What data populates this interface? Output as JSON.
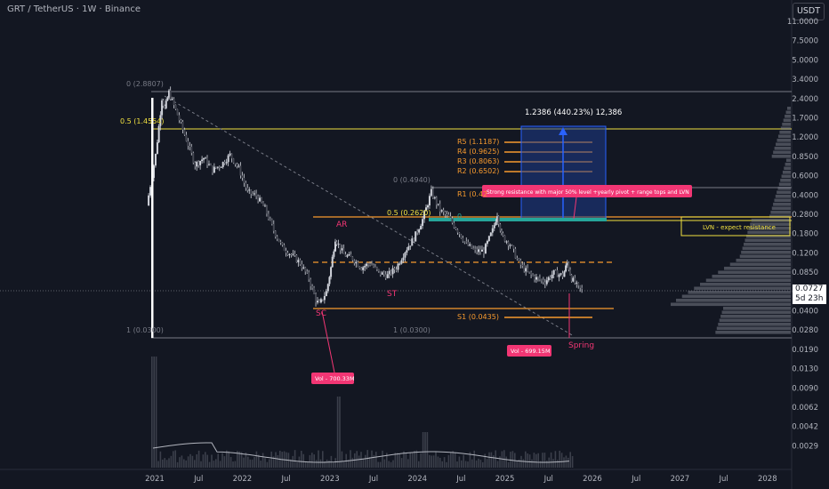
{
  "header": {
    "title": "GRT / TetherUS · 1W · Binance",
    "currency_button": "USDT"
  },
  "price_tag": {
    "value": "0.0727",
    "countdown": "5d 23h"
  },
  "colors": {
    "background": "#131722",
    "up": "#d1d4dc",
    "fib_line": "#f0e040",
    "orange": "#f79a2e",
    "pink": "#f23674",
    "blue_box": "#1e3a8a",
    "green": "#26a69a"
  },
  "chart_data": {
    "type": "candlestick",
    "y_scale": "log",
    "y_ticks": [
      "11.0000",
      "7.5000",
      "5.0000",
      "3.4000",
      "2.4000",
      "1.7000",
      "1.2000",
      "0.8500",
      "0.6000",
      "0.4000",
      "0.2800",
      "0.1800",
      "0.1200",
      "0.0850",
      "0.0600",
      "0.0400",
      "0.0280",
      "0.0190",
      "0.0130",
      "0.0090",
      "0.0062",
      "0.0042",
      "0.0029"
    ],
    "x_ticks": [
      "2021",
      "Jul",
      "2022",
      "Jul",
      "2023",
      "Jul",
      "2024",
      "Jul",
      "2025",
      "Jul",
      "2026",
      "Jul",
      "2027",
      "Jul",
      "2028"
    ],
    "price_path": [
      [
        2020.95,
        0.35
      ],
      [
        2021.05,
        0.9
      ],
      [
        2021.12,
        2.6
      ],
      [
        2021.15,
        2.1
      ],
      [
        2021.2,
        2.9
      ],
      [
        2021.3,
        1.9
      ],
      [
        2021.4,
        1.2
      ],
      [
        2021.5,
        0.75
      ],
      [
        2021.6,
        0.85
      ],
      [
        2021.7,
        0.68
      ],
      [
        2021.8,
        0.75
      ],
      [
        2021.9,
        0.9
      ],
      [
        2022.0,
        0.7
      ],
      [
        2022.1,
        0.45
      ],
      [
        2022.2,
        0.42
      ],
      [
        2022.3,
        0.33
      ],
      [
        2022.4,
        0.22
      ],
      [
        2022.5,
        0.16
      ],
      [
        2022.6,
        0.14
      ],
      [
        2022.7,
        0.12
      ],
      [
        2022.8,
        0.09
      ],
      [
        2022.88,
        0.06
      ],
      [
        2022.92,
        0.055
      ],
      [
        2023.0,
        0.07
      ],
      [
        2023.05,
        0.11
      ],
      [
        2023.1,
        0.19
      ],
      [
        2023.2,
        0.14
      ],
      [
        2023.3,
        0.13
      ],
      [
        2023.4,
        0.11
      ],
      [
        2023.5,
        0.12
      ],
      [
        2023.6,
        0.1
      ],
      [
        2023.7,
        0.095
      ],
      [
        2023.8,
        0.11
      ],
      [
        2023.9,
        0.15
      ],
      [
        2024.0,
        0.19
      ],
      [
        2024.1,
        0.27
      ],
      [
        2024.2,
        0.45
      ],
      [
        2024.3,
        0.32
      ],
      [
        2024.4,
        0.28
      ],
      [
        2024.5,
        0.22
      ],
      [
        2024.6,
        0.17
      ],
      [
        2024.7,
        0.15
      ],
      [
        2024.8,
        0.15
      ],
      [
        2024.9,
        0.22
      ],
      [
        2024.95,
        0.3
      ],
      [
        2025.0,
        0.2
      ],
      [
        2025.1,
        0.17
      ],
      [
        2025.2,
        0.12
      ],
      [
        2025.3,
        0.1
      ],
      [
        2025.4,
        0.09
      ],
      [
        2025.5,
        0.085
      ],
      [
        2025.6,
        0.1
      ],
      [
        2025.7,
        0.095
      ],
      [
        2025.75,
        0.12
      ],
      [
        2025.8,
        0.09
      ],
      [
        2025.88,
        0.075
      ],
      [
        2025.92,
        0.0727
      ]
    ],
    "annotations": {
      "fib_top_0": "0 (2.8807)",
      "fib_mid_05": "0.5 (1.4554)",
      "fib_bottom_1": "1 (0.0300)",
      "fib2_0": "0 (0.4940)",
      "fib2_05": "0.5 (0.2620)",
      "fib2_1": "1 (0.0300)",
      "measure": "1.2386 (440.23%) 12,386",
      "pivots": [
        "R5 (1.1187)",
        "R4 (0.9625)",
        "R3 (0.8063)",
        "R2 (0.6502)",
        "R1 (0.42",
        "S1 (0.0435)"
      ],
      "callout_resistance": "Strong resistance with major 50% level +yearly pivot + range tops and LVN",
      "lvn_label": "LVN - expect resistance",
      "ar": "AR",
      "st": "ST",
      "sc": "SC",
      "spring": "Spring",
      "vol_sc": "Vol - 700.33M",
      "vol_spring": "Vol - 699.15M",
      "green_label": "0"
    }
  }
}
